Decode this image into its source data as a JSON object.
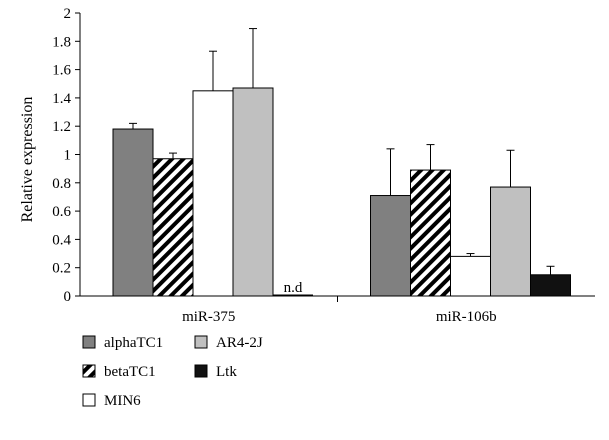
{
  "chart_data": {
    "type": "bar",
    "title": "",
    "xlabel": "",
    "ylabel": "Relative expression",
    "ylim": [
      0,
      2
    ],
    "yticks": [
      "0",
      "0.2",
      "0.4",
      "0.6",
      "0.8",
      "1",
      "1.2",
      "1.4",
      "1.6",
      "1.8",
      "2"
    ],
    "categories": [
      "miR-375",
      "miR-106b"
    ],
    "grid": false,
    "legend_position": "bottom-left",
    "series": [
      {
        "name": "alphaTC1",
        "pattern": "solid",
        "color": "#808080",
        "values": [
          1.18,
          0.71
        ],
        "errors": [
          0.04,
          0.33
        ]
      },
      {
        "name": "betaTC1",
        "pattern": "hatch",
        "color": "#000000",
        "values": [
          0.97,
          0.89
        ],
        "errors": [
          0.04,
          0.18
        ]
      },
      {
        "name": "MIN6",
        "pattern": "solid",
        "color": "#ffffff",
        "values": [
          1.45,
          0.28
        ],
        "errors": [
          0.28,
          0.02
        ]
      },
      {
        "name": "AR4-2J",
        "pattern": "solid",
        "color": "#c0c0c0",
        "values": [
          1.47,
          0.77
        ],
        "errors": [
          0.42,
          0.26
        ]
      },
      {
        "name": "Ltk",
        "pattern": "solid",
        "color": "#111111",
        "values": [
          0.0,
          0.15
        ],
        "errors": [
          0.0,
          0.06
        ]
      }
    ],
    "annotations": [
      {
        "text": "n.d",
        "category": "miR-375",
        "series": "Ltk"
      }
    ]
  }
}
